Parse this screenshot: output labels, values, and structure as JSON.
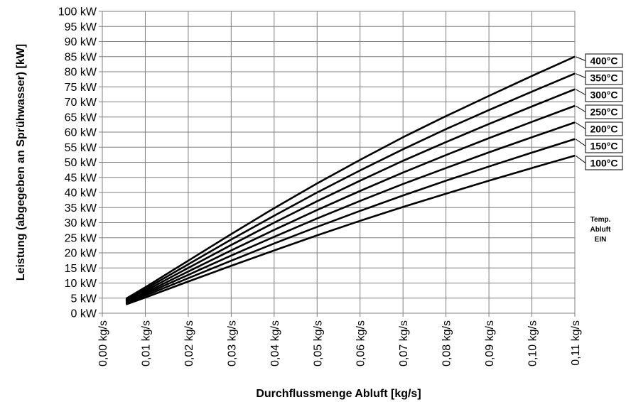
{
  "chart_data": {
    "type": "line",
    "xlabel": "Durchflussmenge Abluft [kg/s]",
    "ylabel": "Leistung (abgegeben an Sprühwasser) [kW]",
    "xlim": [
      0,
      0.11
    ],
    "ylim": [
      0,
      100
    ],
    "x_ticks": [
      "0,00 kg/s",
      "0,01 kg/s",
      "0,02 kg/s",
      "0,03 kg/s",
      "0,04 kg/s",
      "0,05 kg/s",
      "0,06 kg/s",
      "0,07 kg/s",
      "0,08 kg/s",
      "0,09 kg/s",
      "0,10 kg/s",
      "0,11 kg/s"
    ],
    "y_ticks": [
      "0 kW",
      "5 kW",
      "10 kW",
      "15 kW",
      "20 kW",
      "25 kW",
      "30 kW",
      "35 kW",
      "40 kW",
      "45 kW",
      "50 kW",
      "55 kW",
      "60 kW",
      "65 kW",
      "70 kW",
      "75 kW",
      "80 kW",
      "85 kW",
      "90 kW",
      "95 kW",
      "100 kW"
    ],
    "grid": true,
    "legend_title": [
      "Temp.",
      "Abluft",
      "EIN"
    ],
    "x": [
      0.0055,
      0.01,
      0.02,
      0.03,
      0.04,
      0.05,
      0.06,
      0.07,
      0.08,
      0.09,
      0.1,
      0.11
    ],
    "series": [
      {
        "name": "400°C",
        "values": [
          4.8,
          8.6,
          17.4,
          26.2,
          34.8,
          43.0,
          50.8,
          58.3,
          65.3,
          72.0,
          78.6,
          85.0
        ]
      },
      {
        "name": "350°C",
        "values": [
          4.4,
          8.0,
          16.2,
          24.4,
          32.3,
          40.0,
          47.3,
          54.3,
          61.0,
          67.3,
          73.4,
          79.4
        ]
      },
      {
        "name": "300°C",
        "values": [
          4.1,
          7.4,
          15.0,
          22.6,
          30.0,
          37.1,
          43.9,
          50.5,
          56.7,
          62.7,
          68.5,
          74.2
        ]
      },
      {
        "name": "250°C",
        "values": [
          3.8,
          6.8,
          13.8,
          20.8,
          27.6,
          34.2,
          40.5,
          46.6,
          52.4,
          58.0,
          63.4,
          68.7
        ]
      },
      {
        "name": "200°C",
        "values": [
          3.5,
          6.3,
          12.7,
          19.1,
          25.3,
          31.4,
          37.2,
          42.8,
          48.1,
          53.3,
          58.3,
          63.2
        ]
      },
      {
        "name": "150°C",
        "values": [
          3.2,
          5.8,
          11.6,
          17.4,
          23.1,
          28.6,
          33.9,
          39.0,
          43.9,
          48.6,
          53.2,
          57.7
        ]
      },
      {
        "name": "100°C",
        "values": [
          2.9,
          5.2,
          10.5,
          15.7,
          20.8,
          25.8,
          30.6,
          35.2,
          39.6,
          43.9,
          48.1,
          52.2
        ]
      }
    ]
  }
}
